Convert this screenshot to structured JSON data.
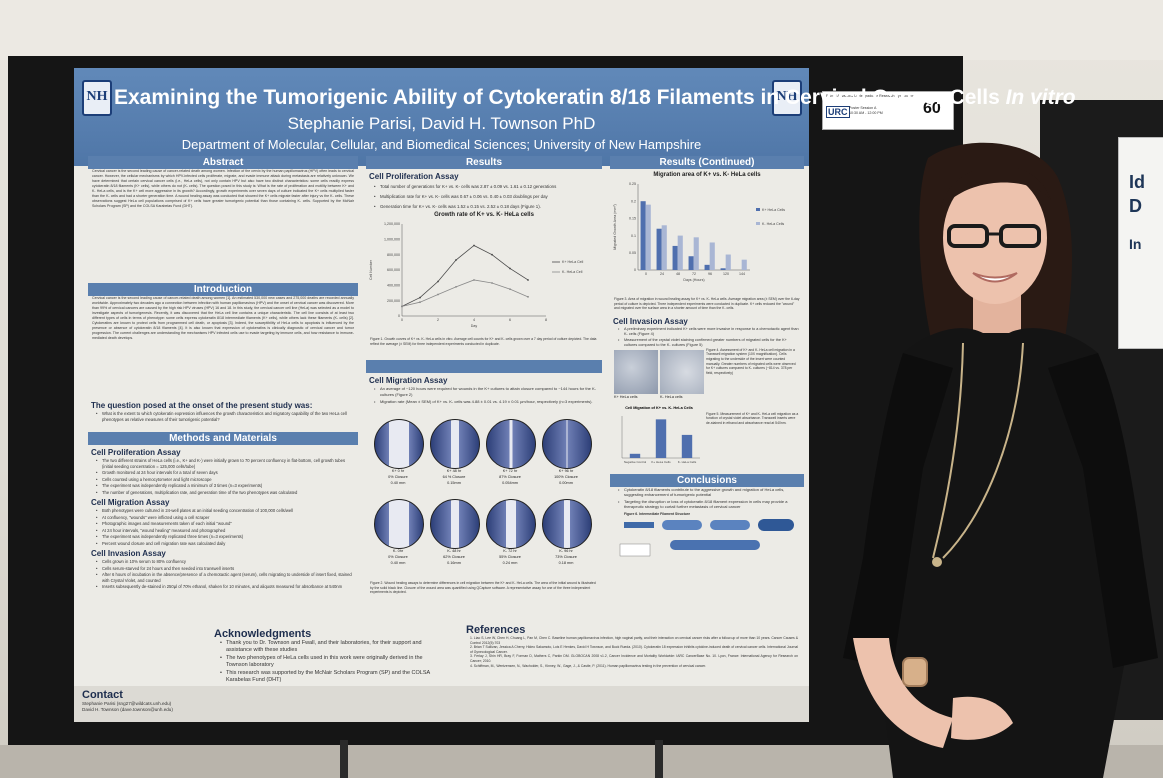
{
  "poster": {
    "title_main": "Examining the Tumorigenic Ability of Cytokeratin 8/18 Filaments in Cervical Cancer Cells ",
    "title_italic": "In vitro",
    "authors": "Stephanie Parisi, David H. Townson PhD",
    "department": "Department of Molecular, Cellular, and Biomedical Sciences; University of New Hampshire",
    "logo_text": "NH",
    "abstract": {
      "heading": "Abstract",
      "text": "Cervical cancer is the second leading cause of cancer-related death among women. Infection of the cervix by the human papillomavirus (HPV) often leads to cervical cancer. However, the cellular mechanisms by which HPV-infected cells proliferate, migrate, and evade immune attack during metastasis are relatively unknown. We have determined that certain cervical cancer cells (i.e., HeLa cells), not only contain HPV but also have two distinct characteristics: some cells readily express cytokeratin 8/18 filaments (K+ cells), while others do not (K- cells). The question posed in this study is: What is the rate of proliferation and motility between K+ and K- HeLa cells, and is the K+ cell more aggressive in its growth? Accordingly, growth experiments over seven days of culture indicated the K+ cells multiplied faster than the K- cells and had a shorter generation time. A wound healing assay was conducted that showed the K+ cells migrate faster after injury vs the K- cells. These observations suggest HeLa cell populations comprised of K+ cells have greater tumorigenic potential than those containing K- cells. Supported by the McNair Scholars Program (SP) and the COLSA Karabelas Fund (DHT)."
    },
    "introduction": {
      "heading": "Introduction",
      "text": "Cervical cancer is the second leading cause of cancer-related death among women [1]. An estimated 530,000 new cases and 275,000 deaths are recorded annually worldwide. Approximately two decades ago a connection between infection with human papillomavirus (HPV) and the onset of cervical cancer was discovered. More than 99% of cervical cancers are caused by the high risk HPV viruses (HPV) 16 and 18. In this study, the cervical cancer cell line (HeLa) was selected as a model to investigate aspects of tumorigenesis. Recently, it was discovered that the HeLa cell line contains a unique characteristic. The cell line consists of at least two different types of cells in terms of phenotype: some cells express cytokeratin 8/18 intermediate filaments (K+ cells), while others lack these filaments (K- cells) [2]. Cytokeratins are known to protect cells from programmed cell death, or apoptosis [3]. Indeed, the susceptibility of HeLa cells to apoptosis is influenced by the presence or absence of cytokeratin 8/18 filaments [4]. It is also known that expression of cytokeratins is clinically diagnostic of cervical cancer and tumor progression. The current challenges are understanding the mechanisms HPV infected cells use to evade targeting by immune cells, and how resistance to immune-mediated death develops.",
      "question_heading": "The question posed at the onset of the present study was:",
      "question": "What is the extent to which cytokeratin expression influences the growth characteristics and migratory capability of the two HeLa cell phenotypes as relative measures of their tumorigenic potential?"
    },
    "methods": {
      "heading": "Methods and Materials",
      "proliferation_heading": "Cell Proliferation Assay",
      "proliferation": [
        "The two different strains of HeLa cells (i.e., K+ and K-) were initially grown to 70 percent confluency in flat-bottom, cell growth tubes (initial seeding concentration = 125,000 cells/tube)",
        "Growth monitored at 24 hour intervals for a total of seven days",
        "Cells counted using a hemocytometer and light microscope",
        "The experiment was independently replicated a minimum of 3 times (n=3 experiments)",
        "The number of generations, multiplication rate, and generation time of the two phenotypes was calculated"
      ],
      "migration_heading": "Cell Migration Assay",
      "migration": [
        "Both phenotypes were cultured in 24-well plates at an initial seeding concentration of 100,000 cells/well",
        "At confluency, \"wounds\" were inflicted using a cell scraper",
        "Photographic images and measurements taken of each initial \"wound\"",
        "At 24 hour intervals, \"wound healing\" measured and photographed",
        "The experiment was independently replicated three times (n=3 experiments)",
        "Percent wound closure and cell migration rate was calculated daily"
      ],
      "invasion_heading": "Cell Invasion Assay",
      "invasion": [
        "Cells grown in 10% serum to 80% confluency",
        "Cells serum-starved for 24 hours and then seeded into transwell inserts",
        "After 6 hours of incubation in the absence/presence of a chemotactic agent (serum), cells migrating to underside of insert fixed, stained with Crystal Violet, and counted",
        "Inserts subsequently de-stained in 250µl of 70% ethanol, shaken for 10 minutes, and aliquots measured for absorbance at 540nm"
      ]
    },
    "results": {
      "heading": "Results",
      "proliferation_heading": "Cell Proliferation Assay",
      "proliferation": [
        "Total number of generations for K+ vs. K- cells was 2.87 ± 0.09 vs. 1.61 ± 0.12 generations",
        "Multiplication rate for K+ vs. K- cells was 0.67 ± 0.06 vs. 0.40 ± 0.03 doublings per day",
        "Generation time for K+ vs. K- cells was 1.52 ± 0.15 vs. 2.52 ± 0.18 days (Figure 1)."
      ],
      "growth_chart_title": "Growth rate of K+ vs. K- HeLa cells",
      "growth_ylabel": "Cell Number",
      "growth_xlabel": "Day",
      "fig1": "Figure 1. Growth curves of K+ vs. K- HeLa cells in vitro. Average cell counts for K+ and K- cells grown over a 7 day period of culture depicted. The data reflect the average (± SEM) for three independent experiments conducted in duplicate.",
      "migration_heading": "Cell Migration Assay",
      "migration": [
        "An average of ~120 hours were required for wounds in the K+ cultures to attain closure compared to ~144 hours for the K- cultures (Figure 2)",
        "Migration rate (Mean ± SEM) of K+ vs. K- cells was 4.88 ± 0.01 vs. 4.19 ± 0.01 µm/hour, respectively (n=3 experiments)."
      ],
      "wells_top": [
        {
          "l1": "K+ 0 hr",
          "l2": "0% Closure",
          "l3": "0.40 mm"
        },
        {
          "l1": "K+ 48 hr",
          "l2": "64 % Closure",
          "l3": "0.15mm"
        },
        {
          "l1": "K+ 72 hr",
          "l2": "87% Closure",
          "l3": "0.054mm"
        },
        {
          "l1": "K+ 96 hr",
          "l2": "100% Closure",
          "l3": "0.00mm"
        }
      ],
      "wells_bottom": [
        {
          "l1": "K- 0hr",
          "l2": "0% Closure",
          "l3": "0.40 mm"
        },
        {
          "l1": "K- 48 hr",
          "l2": "62% Closure",
          "l3": "0.16mm"
        },
        {
          "l1": "K- 72 hr",
          "l2": "55% Closure",
          "l3": "0.24 mm"
        },
        {
          "l1": "K- 96 hr",
          "l2": "73% Closure",
          "l3": "0.18 mm"
        }
      ],
      "fig2": "Figure 2. Wound healing assays to determine differences in cell migration between the K+ and K- HeLa cells. The area of the initial wound is illustrated by the solid black line. Closure of the wound area was quantified using QCapture software. A representative assay for one of the three independent experiments is depicted."
    },
    "results_cont": {
      "heading": "Results (Continued)",
      "mig_chart_title": "Migration area of K+ vs. K- HeLa cells",
      "mig_ylabel": "Migrated Growth Area (mm²)",
      "mig_xlabel": "Days (Hours)",
      "fig3": "Figure 3. Area of migration in wound healing assay for K+ vs. K- HeLa cells. Average migration area (± SEM) over the 6-day period of culture is depicted. Three independent experiments were conducted in duplicate. K+ cells reduced the \"wound\" and migrated over the surface area in a shorter amount of time than the K- cells.",
      "invasion_heading": "Cell Invasion Assay",
      "invasion": [
        "A preliminary experiment indicated K+ cells were more invasive in response to a chemotactic agent than K- cells (Figure 4)",
        "Measurement of the crystal violet staining confirmed greater numbers of migrated cells for the K+ cultures compared to the K- cultures (Figure 5)"
      ],
      "img_k_plus": "K+ HeLa cells",
      "img_k_minus": "K- HeLa cells",
      "fig4": "Figure 4. Assessment of K+ and K- HeLa cell migration in a Transwell migration system (10X magnification). Cells migrating to the underside of the insert were counted manually. Greater numbers of migrated cells were observed for K+ cultures compared to K- cultures (~814 vs. 378 per field, respectively)",
      "inv_chart_title": "Cell Migration of K+ vs. K- HeLa Cells",
      "inv_categories": [
        "Negative Control",
        "K+ HeLa Cells",
        "K- HeLa Cells"
      ],
      "fig5": "Figure 5. Measurement of K+ and K- HeLa cell migration as a function of crystal violet absorbance. Transwell inserts were de-stained in ethanol and absorbance read at 540nm.",
      "conclusions_heading": "Conclusions",
      "conclusions": [
        "Cytokeratin 8/18 filaments contribute to the aggressive growth and migration of HeLa cells, suggesting enhancement of tumorigenic potential",
        "Targeting the disruption or loss of cytokeratin 8/18 filament expression in cells may provide a therapeutic strategy to curtail further metastasis of cervical cancer"
      ],
      "fig6": "Figure 6. Intermediate Filament Structure"
    },
    "contact": {
      "heading": "Contact",
      "line1": "Stephanie Parisi (sng27@wildcats.unh.edu)",
      "line2": "David H. Townson (dave.townson@unh.edu)"
    },
    "acknowledgments": {
      "heading": "Acknowledgments",
      "items": [
        "Thank you to Dr. Townson and Fwall, and their laboratories, for their support and assistance with these studies",
        "The two phenotypes of HeLa cells used in this work were originally derived in the Townson laboratory",
        "This research was supported by the McNair Scholars Program (SP) and the COLSA Karabelas Fund (DHT)"
      ]
    },
    "references": {
      "heading": "References",
      "items": [
        "1. Liao S, Lee W, Chen H, Chuang L, Pan M, Chen C. Baseline human papillomavirus infection, high vaginal parity, and their interaction on cervical cancer risks after a follow-up of more than 10 years. Cancer Causes & Control 2012(5):703",
        "2. Brian T Sullivan, Jessica A Cherry, Hideo Sakamoto, Lois E Henkes, David H Townson, and Buck Rueda. (2010). Cytokeratin 18 expression inhibits cytokine-induced death of cervical cancer cells. International Journal of Gynecological Cancer.",
        "3. Ferlay J, Shin HR, Bray F, Forman D, Mathers C, Parkin DM. GLOBOCAN 2008 v1.2, Cancer Incidence and Mortality Worldwide: IARC CancerBase No. 10. Lyon, France: International Agency for Research on Cancer; 2010.",
        "4. Schiffman, M., Wentzensen, N., Wacholder, S., Kinney, W., Gage, J., & Castle, P. (2011). Human papillomavirus testing in the prevention of cervical cancer."
      ]
    }
  },
  "chart_data": [
    {
      "type": "line",
      "title": "Growth rate of K+ vs. K- HeLa cells",
      "xlabel": "Day",
      "ylabel": "Cell Number",
      "x": [
        0,
        1,
        2,
        3,
        4,
        5,
        6,
        7
      ],
      "ylim": [
        0,
        1200000
      ],
      "yticks": [
        0,
        200000,
        400000,
        600000,
        800000,
        1000000,
        1200000
      ],
      "xticks": [
        0,
        2,
        4,
        6,
        8
      ],
      "series": [
        {
          "name": "K+ HeLa Cell",
          "values": [
            125000,
            240000,
            450000,
            730000,
            920000,
            800000,
            620000,
            470000
          ],
          "color": "#4a4a4a"
        },
        {
          "name": "K- HeLa Cell",
          "values": [
            125000,
            180000,
            280000,
            380000,
            470000,
            430000,
            350000,
            250000
          ],
          "color": "#8a8a8a"
        }
      ],
      "legend": "right",
      "grid": false
    },
    {
      "type": "bar",
      "title": "Migration area of K+ vs. K- HeLa cells",
      "xlabel": "Days (Hours)",
      "ylabel": "Migrated Growth Area (mm²)",
      "categories": [
        "0",
        "24",
        "48",
        "72",
        "96",
        "120",
        "144"
      ],
      "ylim": [
        0,
        0.25
      ],
      "yticks": [
        0,
        0.05,
        0.1,
        0.15,
        0.2,
        0.25
      ],
      "series": [
        {
          "name": "K+ HeLa Cells",
          "values": [
            0.2,
            0.12,
            0.07,
            0.04,
            0.015,
            0.005,
            0.0
          ],
          "color": "#4f6fae"
        },
        {
          "name": "K- HeLa Cells",
          "values": [
            0.19,
            0.13,
            0.1,
            0.095,
            0.08,
            0.045,
            0.03
          ],
          "color": "#a9b6d4"
        }
      ],
      "legend": "right"
    },
    {
      "type": "bar",
      "title": "Cell Migration of K+ vs. K- HeLa Cells",
      "ylabel": "",
      "categories": [
        "Negative Control",
        "K+ HeLa Cells",
        "K- HeLa Cells"
      ],
      "ylim": [
        0,
        1
      ],
      "values": [
        0.1,
        0.92,
        0.55
      ],
      "color": "#4f6fae"
    }
  ],
  "session_tag": {
    "event": "Paired Advanced Undergraduate Research Symposium",
    "urc": "URC",
    "session": "Poster Session A",
    "time": "10:30 AM - 12:00 PM",
    "number": "60"
  },
  "right_sign": {
    "big1": "Id",
    "big2": "D",
    "big3": "In"
  }
}
